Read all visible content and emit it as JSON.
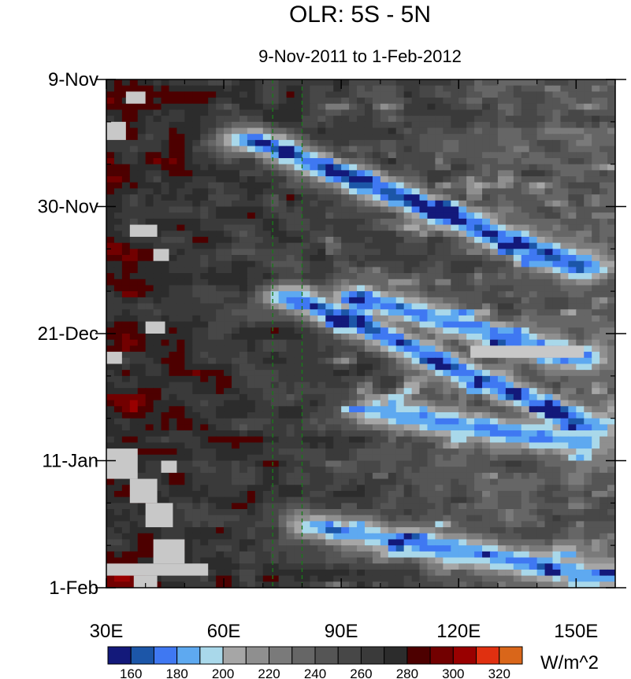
{
  "chart_data": {
    "type": "heatmap",
    "title": "OLR: 5S - 5N",
    "subtitle": "9-Nov-2011 to 1-Feb-2012",
    "x_ticks": [
      {
        "value": 30,
        "label": "30E"
      },
      {
        "value": 60,
        "label": "60E"
      },
      {
        "value": 90,
        "label": "90E"
      },
      {
        "value": 120,
        "label": "120E"
      },
      {
        "value": 150,
        "label": "150E"
      }
    ],
    "xlim": [
      30,
      160
    ],
    "y_ticks": [
      {
        "value": 0,
        "label": "9-Nov"
      },
      {
        "value": 21,
        "label": "30-Nov"
      },
      {
        "value": 42,
        "label": "21-Dec"
      },
      {
        "value": 63,
        "label": "11-Jan"
      },
      {
        "value": 84,
        "label": "1-Feb"
      }
    ],
    "ylim": [
      0,
      84
    ],
    "y_inverted": true,
    "reference_lines": [
      {
        "x": 72.5,
        "color": "#1a7a1a",
        "style": "dashed"
      },
      {
        "x": 80,
        "color": "#1a7a1a",
        "style": "dashed"
      }
    ],
    "colorbar": {
      "unit": "W/m^2",
      "level_labels": [
        "160",
        "180",
        "200",
        "220",
        "240",
        "260",
        "280",
        "300",
        "320"
      ],
      "colors": [
        "#13197a",
        "#1c56a8",
        "#3f78f2",
        "#5ea9f0",
        "#a9d8ea",
        "#a6a6a6",
        "#8f8f8f",
        "#7a7a7a",
        "#666666",
        "#555555",
        "#474747",
        "#3a3a3a",
        "#2c2c2c",
        "#4d0000",
        "#720000",
        "#990000",
        "#e03010",
        "#d9661a"
      ]
    },
    "missing_color": "#c8c8c8",
    "convective_bands": [
      {
        "lon0": 68,
        "day0": 10,
        "lon1": 150,
        "day1": 31,
        "olr": 160
      },
      {
        "lon0": 78,
        "day0": 36,
        "lon1": 152,
        "day1": 57,
        "olr": 165
      },
      {
        "lon0": 95,
        "day0": 36,
        "lon1": 150,
        "day1": 46,
        "olr": 170
      },
      {
        "lon0": 100,
        "day0": 55,
        "lon1": 150,
        "day1": 60,
        "olr": 175
      },
      {
        "lon0": 85,
        "day0": 74,
        "lon1": 155,
        "day1": 82,
        "olr": 175
      }
    ],
    "warm_patches": [
      {
        "lon": 37,
        "day": 54,
        "olr": 300
      },
      {
        "lon": 39,
        "day": 69,
        "olr": 290
      },
      {
        "lon": 40,
        "day": 77,
        "olr": 290
      },
      {
        "lon": 35,
        "day": 82,
        "olr": 305
      }
    ]
  }
}
